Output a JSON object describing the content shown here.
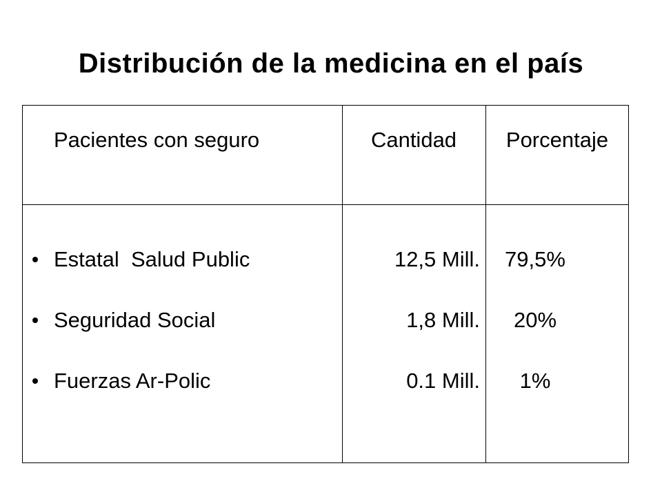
{
  "title": "Distribución de la medicina en el país",
  "table": {
    "headers": [
      "Pacientes con seguro",
      "Cantidad",
      "Porcentaje"
    ],
    "rows": [
      {
        "label": "Estatal  Salud Public",
        "quantity": "12,5 Mill.",
        "percent": "79,5%"
      },
      {
        "label": "Seguridad Social",
        "quantity": "1,8 Mill.",
        "percent": "20%"
      },
      {
        "label": "Fuerzas Ar-Polic",
        "quantity": "0.1 Mill.",
        "percent": "1%"
      }
    ]
  }
}
